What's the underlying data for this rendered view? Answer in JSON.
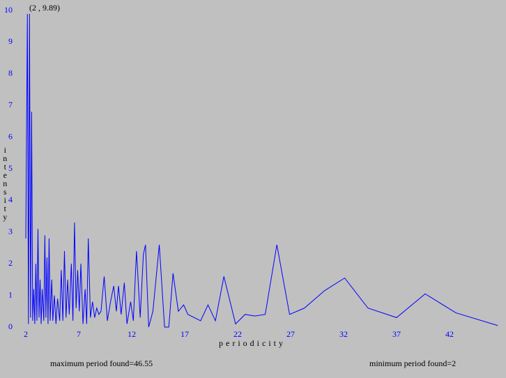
{
  "chart_data": {
    "type": "line",
    "annotation": "(2 , 9.89)",
    "xlabel": "periodicity",
    "ylabel": "intensity",
    "footer_left": "maximum period found=46.55",
    "footer_right": "minimum period found=2",
    "x": [
      2.0,
      2.15,
      2.25,
      2.35,
      2.45,
      2.55,
      2.65,
      2.75,
      2.85,
      2.95,
      3.05,
      3.15,
      3.25,
      3.35,
      3.45,
      3.55,
      3.7,
      3.8,
      3.9,
      4.0,
      4.1,
      4.2,
      4.3,
      4.45,
      4.55,
      4.7,
      4.85,
      5.0,
      5.2,
      5.35,
      5.5,
      5.65,
      5.8,
      5.95,
      6.1,
      6.3,
      6.45,
      6.6,
      6.75,
      6.9,
      7.05,
      7.2,
      7.4,
      7.6,
      7.75,
      7.9,
      8.1,
      8.3,
      8.5,
      8.7,
      8.9,
      9.1,
      9.4,
      9.7,
      10.0,
      10.3,
      10.55,
      10.75,
      11.0,
      11.3,
      11.55,
      11.9,
      12.15,
      12.45,
      12.8,
      13.1,
      13.3,
      13.6,
      14.0,
      14.6,
      15.1,
      15.5,
      15.9,
      16.4,
      16.9,
      17.3,
      18.5,
      19.2,
      19.9,
      20.7,
      21.8,
      22.7,
      23.6,
      24.6,
      25.7,
      26.9,
      28.3,
      30.2,
      32.1,
      34.3,
      37.0,
      39.7,
      42.6,
      46.55
    ],
    "series": [
      {
        "name": "intensity",
        "color": "#0000ff",
        "values": [
          2.8,
          9.89,
          0.1,
          9.89,
          0.3,
          6.8,
          0.2,
          1.2,
          0.1,
          2.0,
          0.2,
          3.1,
          0.3,
          1.5,
          0.1,
          1.2,
          0.2,
          2.9,
          0.3,
          2.2,
          0.1,
          2.8,
          0.2,
          1.5,
          0.2,
          1.0,
          0.1,
          0.9,
          0.2,
          1.8,
          0.2,
          2.4,
          0.3,
          1.5,
          0.4,
          2.0,
          0.2,
          3.3,
          0.6,
          1.8,
          0.5,
          2.0,
          0.1,
          1.2,
          0.1,
          2.8,
          0.3,
          0.8,
          0.3,
          0.6,
          0.4,
          0.5,
          1.6,
          0.2,
          0.8,
          1.3,
          0.5,
          1.3,
          0.4,
          1.4,
          0.1,
          0.8,
          0.2,
          2.4,
          0.3,
          2.3,
          2.6,
          0,
          0.5,
          2.6,
          0,
          0,
          1.7,
          0.5,
          0.7,
          0.4,
          0.2,
          0.7,
          0.2,
          1.6,
          0.1,
          0.4,
          0.35,
          0.4,
          2.6,
          0.4,
          0.6,
          1.15,
          1.55,
          0.6,
          0.3,
          1.05,
          0.45,
          0.05
        ]
      }
    ],
    "xlim": [
      2,
      47
    ],
    "ylim": [
      0,
      10
    ],
    "xticks": [
      2,
      7,
      12,
      17,
      22,
      27,
      32,
      37,
      42
    ],
    "yticks": [
      0,
      1,
      2,
      3,
      4,
      5,
      6,
      7,
      8,
      9,
      10
    ],
    "grid": false
  }
}
